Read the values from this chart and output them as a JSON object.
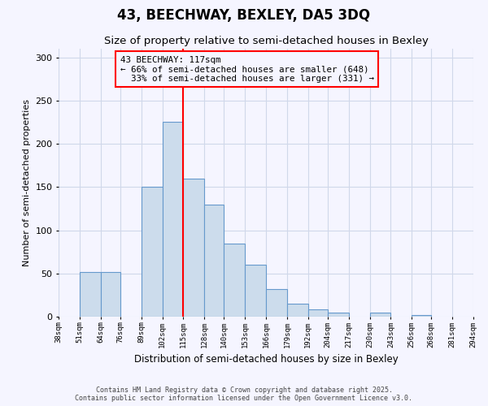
{
  "title": "43, BEECHWAY, BEXLEY, DA5 3DQ",
  "subtitle": "Size of property relative to semi-detached houses in Bexley",
  "xlabel": "Distribution of semi-detached houses by size in Bexley",
  "ylabel": "Number of semi-detached properties",
  "bin_labels": [
    "38sqm",
    "51sqm",
    "64sqm",
    "76sqm",
    "89sqm",
    "102sqm",
    "115sqm",
    "128sqm",
    "140sqm",
    "153sqm",
    "166sqm",
    "179sqm",
    "192sqm",
    "204sqm",
    "217sqm",
    "230sqm",
    "243sqm",
    "256sqm",
    "268sqm",
    "281sqm",
    "294sqm"
  ],
  "bin_edges": [
    38,
    51,
    64,
    76,
    89,
    102,
    115,
    128,
    140,
    153,
    166,
    179,
    192,
    204,
    217,
    230,
    243,
    256,
    268,
    281,
    294
  ],
  "bar_heights": [
    0,
    52,
    52,
    0,
    150,
    225,
    160,
    130,
    85,
    60,
    32,
    15,
    8,
    5,
    0,
    5,
    0,
    2,
    0,
    0,
    0
  ],
  "bar_color": "#ccdcec",
  "bar_edge_color": "#6699cc",
  "vline_x": 115,
  "vline_color": "red",
  "annotation_title": "43 BEECHWAY: 117sqm",
  "annotation_line1": "← 66% of semi-detached houses are smaller (648)",
  "annotation_line2": "  33% of semi-detached houses are larger (331) →",
  "ylim": [
    0,
    310
  ],
  "yticks": [
    0,
    50,
    100,
    150,
    200,
    250,
    300
  ],
  "footer1": "Contains HM Land Registry data © Crown copyright and database right 2025.",
  "footer2": "Contains public sector information licensed under the Open Government Licence v3.0.",
  "bg_color": "#f5f5ff",
  "grid_color": "#d0d8ea"
}
